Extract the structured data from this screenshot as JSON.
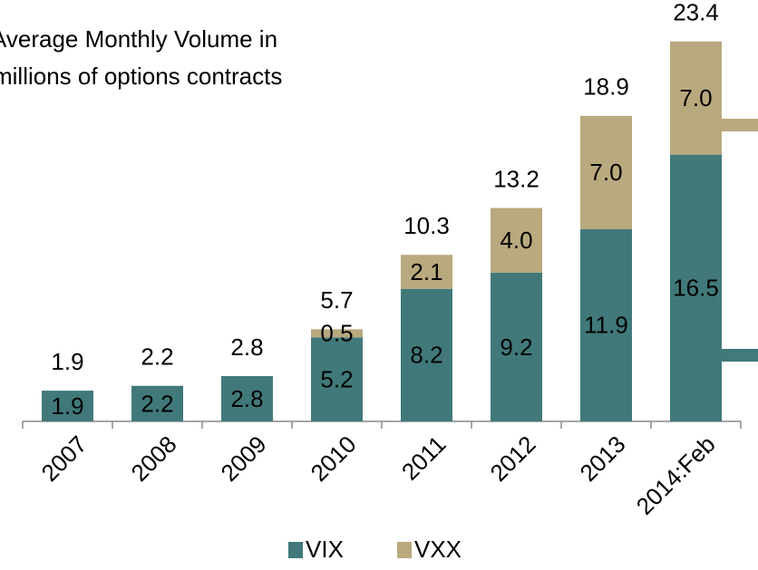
{
  "chart_data": {
    "type": "stacked_bar",
    "title": [
      "Average Monthly Volume in",
      "millions of options contracts"
    ],
    "categories": [
      "2007",
      "2008",
      "2009",
      "2010",
      "2011",
      "2012",
      "2013",
      "2014:Feb"
    ],
    "series": [
      {
        "name": "VIX",
        "color": "#41797a",
        "values": [
          1.9,
          2.2,
          2.8,
          5.2,
          8.2,
          9.2,
          11.9,
          16.5
        ]
      },
      {
        "name": "VXX",
        "color": "#b9a97e",
        "values": [
          null,
          null,
          null,
          0.5,
          2.1,
          4,
          7,
          7
        ],
        "value_labels": [
          null,
          null,
          null,
          "0.5",
          "2.1",
          "4.0",
          "7.0",
          "7.0"
        ]
      }
    ],
    "totals": [
      1.9,
      2.2,
      2.8,
      5.7,
      10.3,
      13.2,
      18.9,
      23.4
    ],
    "ylim": [
      0,
      25
    ]
  }
}
